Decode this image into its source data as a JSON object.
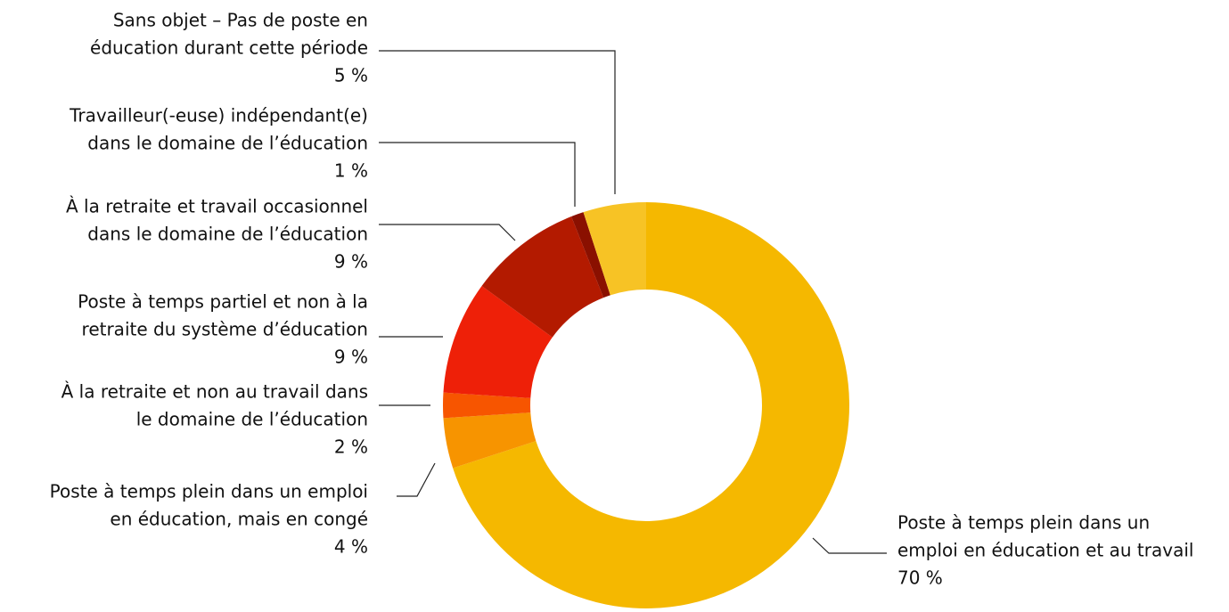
{
  "chart_data": {
    "type": "donut",
    "categories": [
      [
        "Poste à temps plein dans un",
        "emploi en éducation et au travail"
      ],
      [
        "Poste à temps plein dans un emploi",
        "en éducation, mais en congé"
      ],
      [
        "À la retraite et non au travail dans",
        "le domaine de l’éducation"
      ],
      [
        "Poste à temps partiel et non à la",
        "retraite du système d’éducation"
      ],
      [
        "À la retraite et travail occasionnel",
        "dans le domaine de l’éducation"
      ],
      [
        "Travailleur(-euse) indépendant(e)",
        "dans le domaine de l’éducation"
      ],
      [
        "Sans objet – Pas de poste en",
        "éducation durant cette période"
      ]
    ],
    "values": [
      70,
      4,
      2,
      9,
      9,
      1,
      5
    ],
    "value_labels": [
      "70 %",
      "4 %",
      "2 %",
      "9 %",
      "9 %",
      "1 %",
      "5 %"
    ],
    "colors": [
      "#f5b800",
      "#f79400",
      "#f75500",
      "#ee2008",
      "#b31a00",
      "#8a1000",
      "#f7c325"
    ]
  }
}
